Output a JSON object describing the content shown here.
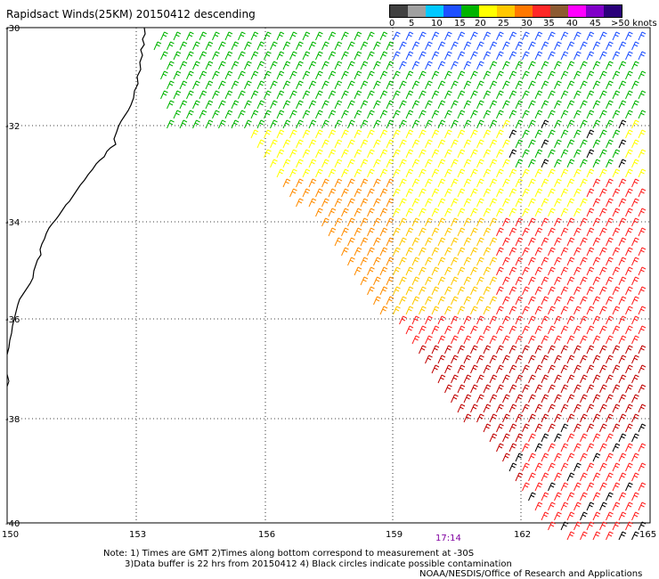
{
  "title": "Rapidsact Winds(25KM) 20150412 descending",
  "legend": {
    "ticks": [
      "0",
      "5",
      "10",
      "15",
      "20",
      "25",
      "30",
      "35",
      "40",
      "45",
      ">50 knots"
    ],
    "colors": [
      "#404040",
      "#a0a0a0",
      "#00c8ff",
      "#1e50ff",
      "#00b400",
      "#ffff00",
      "#ffc800",
      "#ff7800",
      "#ff2828",
      "#8c5a32",
      "#ff00ff",
      "#8000c8",
      "#2a007a"
    ]
  },
  "axes": {
    "lat_labels": [
      "-30",
      "-32",
      "-34",
      "-36",
      "-38",
      "-40"
    ],
    "lon_labels": [
      "150",
      "153",
      "156",
      "159",
      "162",
      "165"
    ]
  },
  "time_label": "17:14",
  "notes": [
    "Note: 1) Times are GMT 2)Times along bottom correspond to measurement at -30S",
    "3)Data buffer is 22 hrs from 20150412 4) Black circles indicate possible contamination",
    "NOAA/NESDIS/Office of Research and Applications"
  ],
  "wind_colors": {
    "black": "#000000",
    "blue": "#1e50ff",
    "green": "#00b400",
    "yellow": "#ffff00",
    "gold": "#ffc800",
    "orange": "#ff8c00",
    "red": "#ff2020",
    "darkred": "#c00000"
  }
}
